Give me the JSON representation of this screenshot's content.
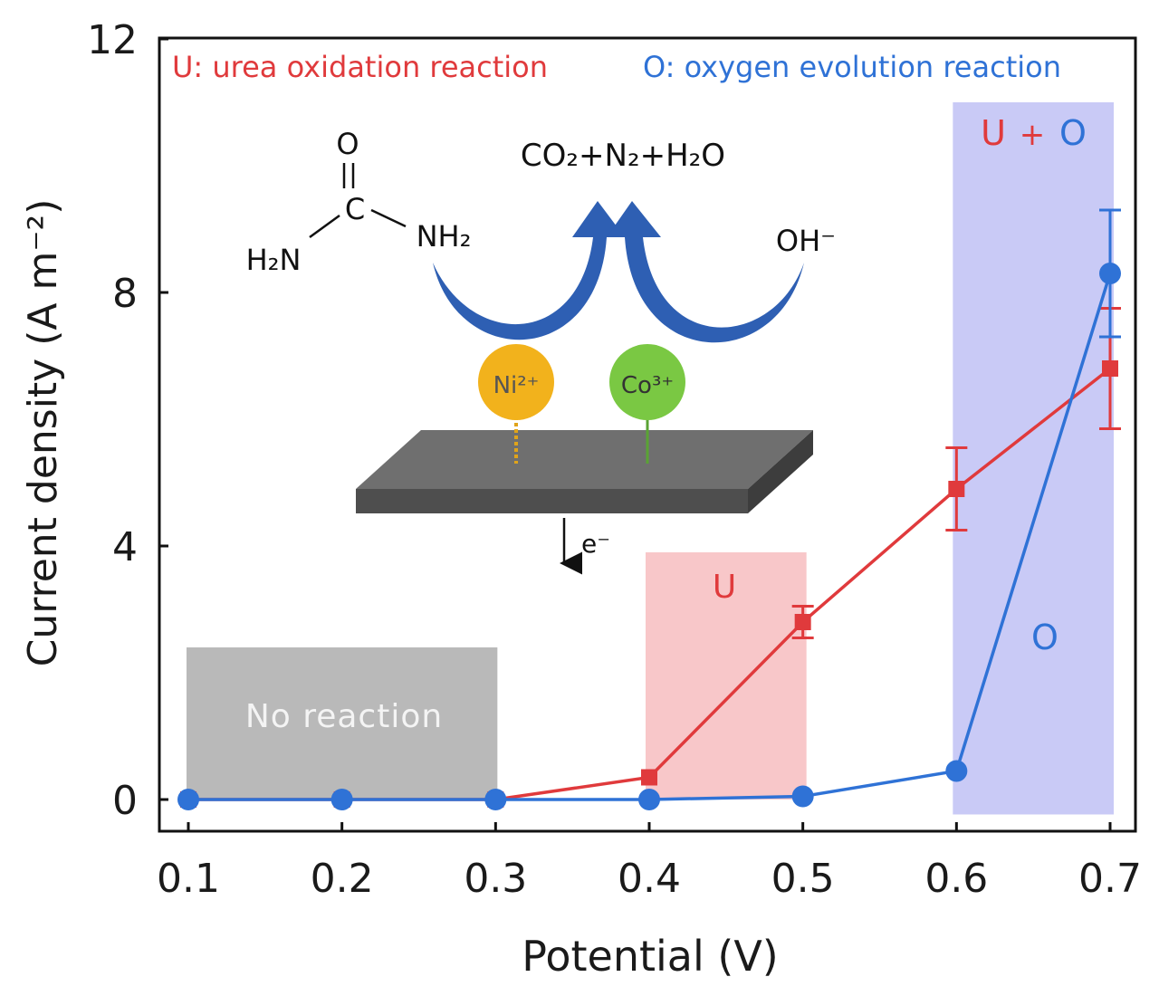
{
  "colors": {
    "urea": "#e03a3c",
    "oxygen": "#2f72d6",
    "noreaction_fill": "#b9b9b9",
    "u_fill": "#f8c7c9",
    "uo_fill": "#c9caf6",
    "arrow": "#2e5fb3",
    "ni": "#f2b21c",
    "co": "#7ac843",
    "plate_top": "#6f6f6f",
    "plate_front": "#4e4e4e"
  },
  "legend": {
    "urea": "U: urea oxidation reaction",
    "oxygen": "O: oxygen evolution reaction"
  },
  "regions": {
    "no_reaction": "No reaction",
    "u": "U",
    "uo_u": "U",
    "uo_plus": "+",
    "uo_o": "O",
    "o": "O"
  },
  "inset": {
    "products": "CO₂+N₂+H₂O",
    "urea_o": "O",
    "urea_c": "C",
    "urea_nh2_left": "H₂N",
    "urea_nh2_right": "NH₂",
    "oh": "OH⁻",
    "ni": "Ni²⁺",
    "co": "Co³⁺",
    "electron": "e⁻"
  },
  "chart_data": {
    "type": "line",
    "xlabel": "Potential (V)",
    "ylabel": "Current density (A m⁻²)",
    "x": [
      0.1,
      0.2,
      0.3,
      0.4,
      0.5,
      0.6,
      0.7
    ],
    "xticks": [
      "0.1",
      "0.2",
      "0.3",
      "0.4",
      "0.5",
      "0.6",
      "0.7"
    ],
    "yticks": [
      "0",
      "4",
      "8",
      "12"
    ],
    "xlim": [
      0.08,
      0.72
    ],
    "ylim": [
      -0.5,
      12
    ],
    "series": [
      {
        "name": "U: urea oxidation reaction",
        "color_key": "urea",
        "marker": "square",
        "values": [
          0,
          0,
          0,
          0.35,
          2.8,
          4.9,
          6.8
        ],
        "errors": [
          0,
          0,
          0,
          0,
          0.25,
          0.65,
          0.95
        ]
      },
      {
        "name": "O: oxygen evolution reaction",
        "color_key": "oxygen",
        "marker": "circle",
        "values": [
          0,
          0,
          0,
          0,
          0.05,
          0.45,
          8.3
        ],
        "errors": [
          0,
          0,
          0,
          0,
          0,
          0,
          1.0
        ]
      }
    ],
    "shaded_regions": [
      {
        "label": "No reaction",
        "x": [
          0.1,
          0.3
        ],
        "y": [
          0,
          2.4
        ],
        "fill_key": "noreaction_fill"
      },
      {
        "label": "U",
        "x": [
          0.4,
          0.5
        ],
        "y": [
          0,
          3.9
        ],
        "fill_key": "u_fill"
      },
      {
        "label": "U + O",
        "x": [
          0.6,
          0.7
        ],
        "y": [
          -0.15,
          11.0
        ],
        "fill_key": "uo_fill"
      }
    ]
  }
}
